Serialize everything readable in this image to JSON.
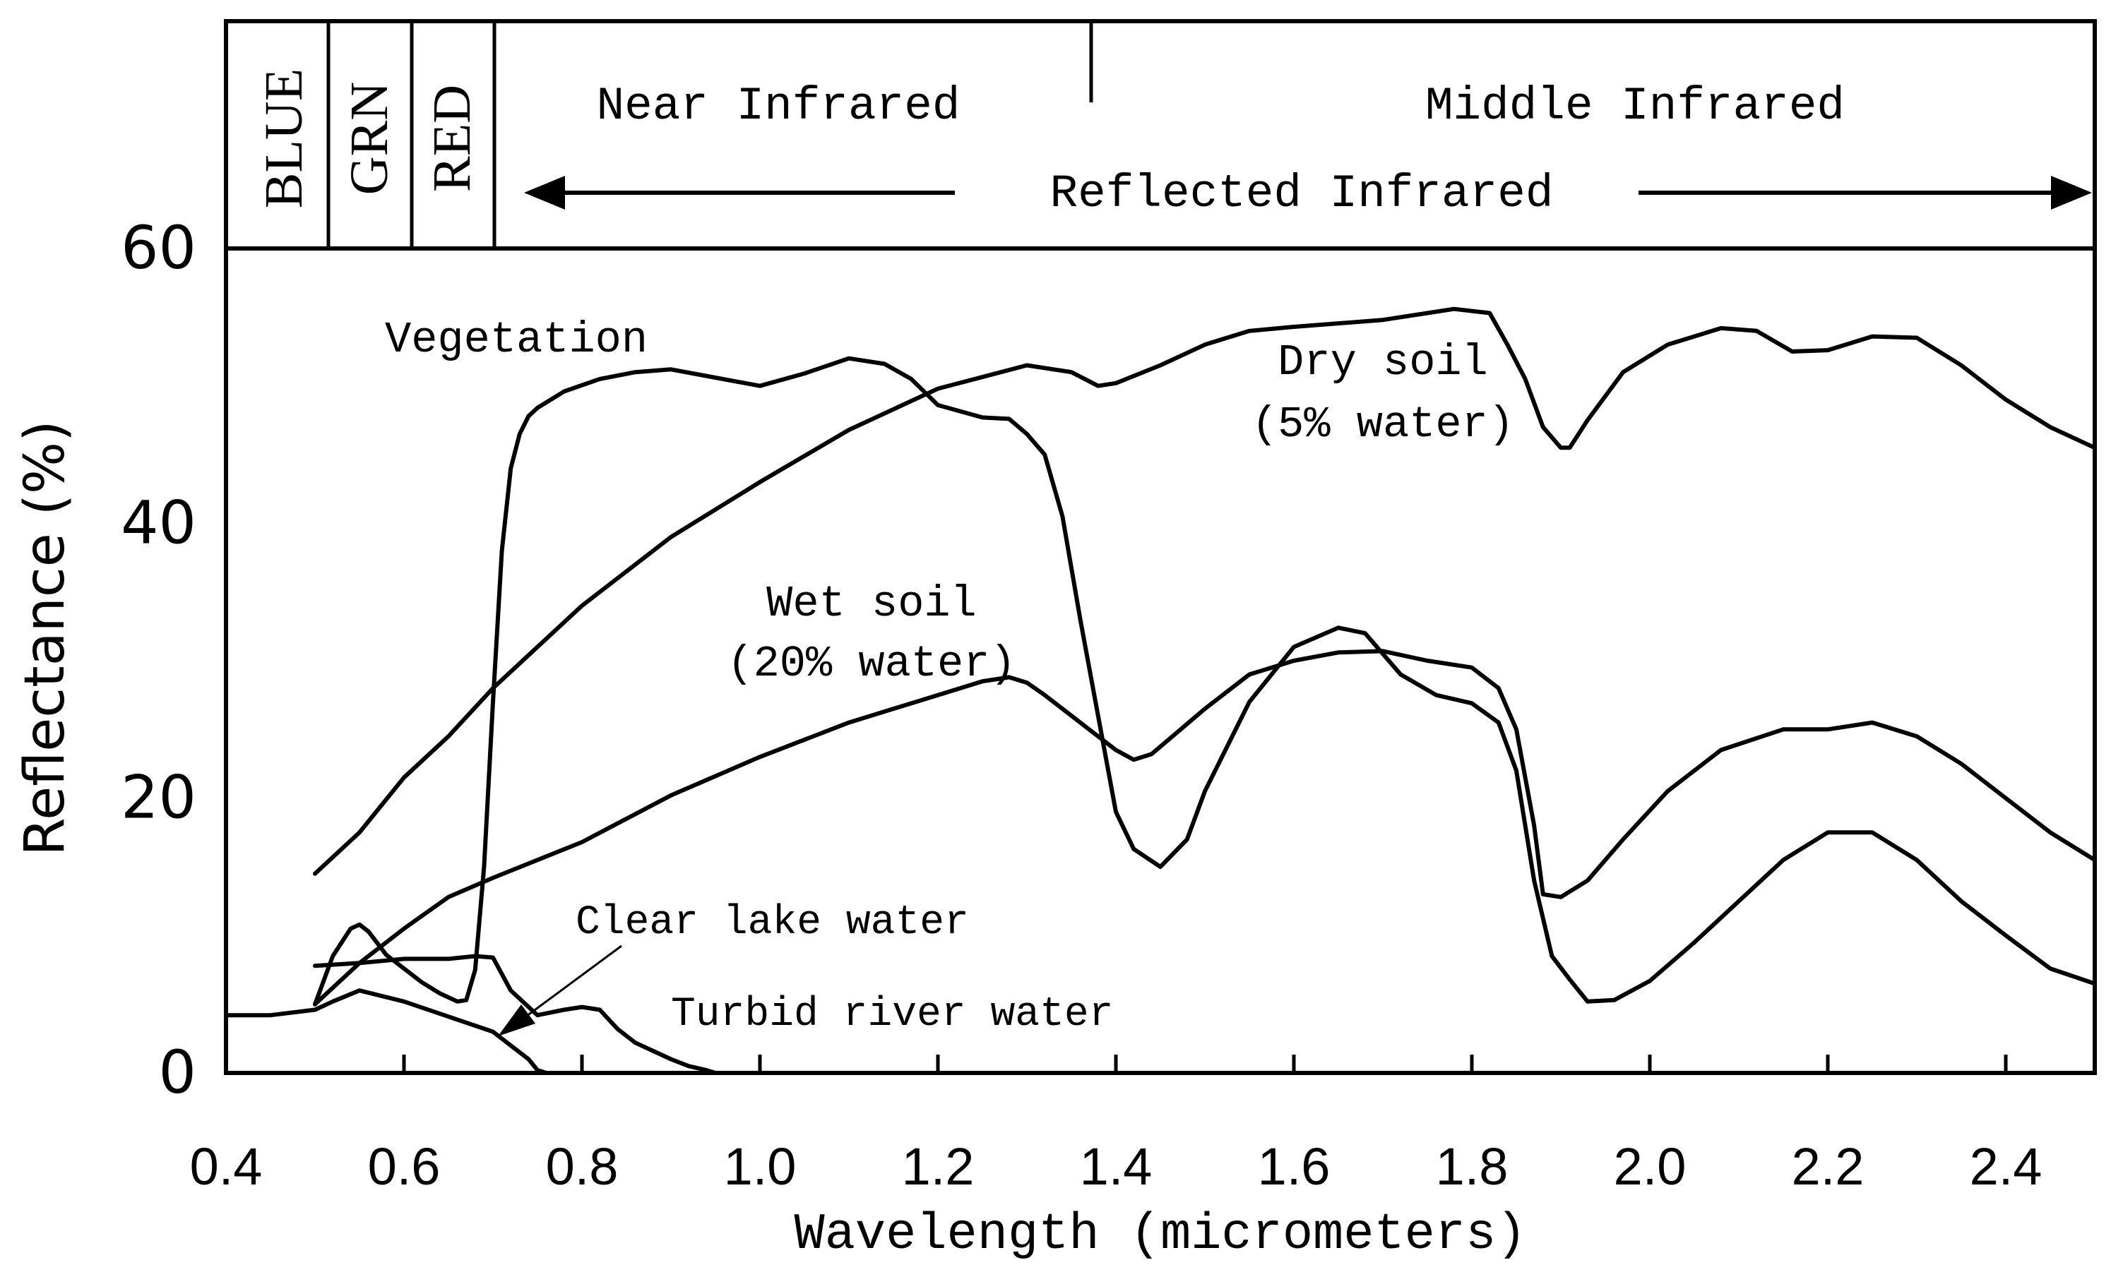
{
  "chart_data": {
    "type": "line",
    "xlabel": "Wavelength (micrometers)",
    "ylabel": "Reflectance (%)",
    "xlim": [
      0.4,
      2.5
    ],
    "ylim": [
      0,
      60
    ],
    "x_ticks": [
      "0.4",
      "0.6",
      "0.8",
      "1.0",
      "1.2",
      "1.4",
      "1.6",
      "1.8",
      "2.0",
      "2.2",
      "2.4"
    ],
    "x_tick_values": [
      0.4,
      0.6,
      0.8,
      1.0,
      1.2,
      1.4,
      1.6,
      1.8,
      2.0,
      2.2,
      2.4
    ],
    "y_ticks": [
      "0",
      "20",
      "40",
      "60"
    ],
    "y_tick_values": [
      0,
      20,
      40,
      60
    ],
    "bands": {
      "blue": "BLUE",
      "green": "GRN",
      "red": "RED",
      "near_ir": "Near Infrared",
      "middle_ir": "Middle Infrared",
      "reflected_ir": "Reflected Infrared"
    },
    "series": [
      {
        "name": "Vegetation",
        "label": "Vegetation",
        "x": [
          0.5,
          0.52,
          0.54,
          0.55,
          0.56,
          0.58,
          0.6,
          0.62,
          0.64,
          0.66,
          0.67,
          0.68,
          0.69,
          0.7,
          0.71,
          0.72,
          0.73,
          0.74,
          0.75,
          0.78,
          0.82,
          0.86,
          0.9,
          0.95,
          1.0,
          1.05,
          1.1,
          1.14,
          1.17,
          1.2,
          1.25,
          1.28,
          1.3,
          1.32,
          1.34,
          1.36,
          1.38,
          1.4,
          1.42,
          1.45,
          1.48,
          1.5,
          1.55,
          1.6,
          1.65,
          1.68,
          1.72,
          1.76,
          1.8,
          1.83,
          1.85,
          1.87,
          1.89,
          1.91,
          1.93,
          1.96,
          2.0,
          2.05,
          2.1,
          2.15,
          2.2,
          2.25,
          2.3,
          2.35,
          2.4,
          2.45,
          2.5
        ],
        "y": [
          5.0,
          8.5,
          10.5,
          10.8,
          10.3,
          8.6,
          7.6,
          6.6,
          5.8,
          5.2,
          5.3,
          7.5,
          15.0,
          27.0,
          38.0,
          44.0,
          46.5,
          47.8,
          48.4,
          49.6,
          50.5,
          51.0,
          51.2,
          50.6,
          50.0,
          50.9,
          52.0,
          51.6,
          50.5,
          48.6,
          47.7,
          47.6,
          46.5,
          45.0,
          40.5,
          33.0,
          26.0,
          19.0,
          16.3,
          15.0,
          17.0,
          20.5,
          27.0,
          31.0,
          32.4,
          32.0,
          29.0,
          27.5,
          26.9,
          25.5,
          22.0,
          14.0,
          8.5,
          6.8,
          5.2,
          5.3,
          6.7,
          9.5,
          12.5,
          15.5,
          17.5,
          17.5,
          15.5,
          12.5,
          10.0,
          7.6,
          6.5
        ]
      },
      {
        "name": "Dry soil (5% water)",
        "label_line1": "Dry soil",
        "label_line2": "(5% water)",
        "x": [
          0.5,
          0.55,
          0.6,
          0.65,
          0.7,
          0.8,
          0.9,
          1.0,
          1.1,
          1.2,
          1.3,
          1.35,
          1.38,
          1.4,
          1.45,
          1.5,
          1.55,
          1.6,
          1.7,
          1.78,
          1.82,
          1.84,
          1.86,
          1.88,
          1.9,
          1.91,
          1.93,
          1.97,
          2.02,
          2.08,
          2.12,
          2.16,
          2.2,
          2.25,
          2.3,
          2.35,
          2.4,
          2.45,
          2.5
        ],
        "y": [
          14.5,
          17.5,
          21.5,
          24.5,
          28.0,
          34.0,
          39.0,
          43.0,
          46.8,
          49.8,
          51.5,
          51.0,
          50.0,
          50.2,
          51.5,
          53.0,
          54.0,
          54.3,
          54.8,
          55.6,
          55.3,
          53.0,
          50.5,
          47.0,
          45.5,
          45.5,
          47.5,
          51.0,
          53.0,
          54.2,
          54.0,
          52.5,
          52.6,
          53.6,
          53.5,
          51.5,
          49.0,
          47.0,
          45.5
        ]
      },
      {
        "name": "Wet soil (20% water)",
        "label_line1": "Wet soil",
        "label_line2": "(20% water)",
        "x": [
          0.5,
          0.55,
          0.6,
          0.65,
          0.7,
          0.8,
          0.9,
          1.0,
          1.1,
          1.2,
          1.25,
          1.28,
          1.3,
          1.32,
          1.35,
          1.38,
          1.4,
          1.42,
          1.44,
          1.5,
          1.55,
          1.6,
          1.65,
          1.7,
          1.75,
          1.8,
          1.83,
          1.85,
          1.87,
          1.88,
          1.9,
          1.93,
          1.97,
          2.02,
          2.08,
          2.15,
          2.2,
          2.25,
          2.3,
          2.35,
          2.4,
          2.45,
          2.5
        ],
        "y": [
          5.0,
          8.0,
          10.5,
          12.8,
          14.2,
          16.8,
          20.2,
          23.0,
          25.5,
          27.5,
          28.5,
          28.8,
          28.4,
          27.5,
          26.0,
          24.5,
          23.5,
          22.8,
          23.2,
          26.5,
          29.0,
          30.0,
          30.6,
          30.7,
          30.0,
          29.5,
          28.0,
          25.0,
          18.0,
          13.0,
          12.8,
          14.0,
          17.0,
          20.5,
          23.5,
          25.0,
          25.0,
          25.5,
          24.5,
          22.5,
          20.0,
          17.5,
          15.5
        ]
      },
      {
        "name": "Clear lake water",
        "label": "Clear lake water",
        "x": [
          0.4,
          0.45,
          0.5,
          0.52,
          0.55,
          0.6,
          0.65,
          0.7,
          0.72,
          0.74,
          0.75,
          0.76
        ],
        "y": [
          4.2,
          4.2,
          4.6,
          5.2,
          6.0,
          5.2,
          4.1,
          3.0,
          2.0,
          1.0,
          0.2,
          0.0
        ]
      },
      {
        "name": "Turbid river water",
        "label": "Turbid river water",
        "x": [
          0.5,
          0.55,
          0.6,
          0.65,
          0.68,
          0.7,
          0.72,
          0.75,
          0.78,
          0.8,
          0.82,
          0.84,
          0.86,
          0.88,
          0.9,
          0.92,
          0.94,
          0.95
        ],
        "y": [
          7.8,
          8.0,
          8.3,
          8.3,
          8.5,
          8.4,
          6.0,
          4.2,
          4.6,
          4.8,
          4.6,
          3.2,
          2.2,
          1.6,
          1.0,
          0.5,
          0.2,
          0.0
        ]
      }
    ]
  }
}
